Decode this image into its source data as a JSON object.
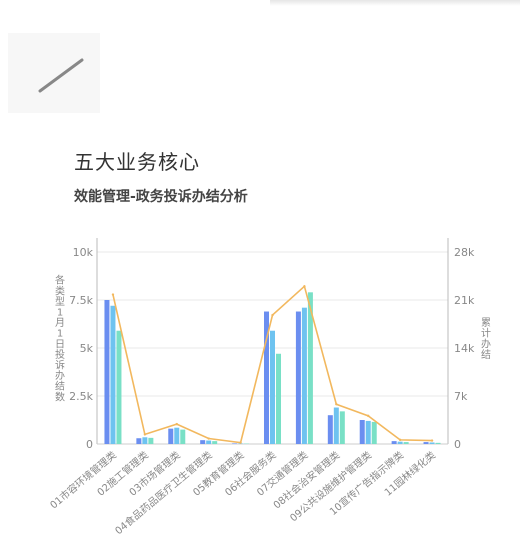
{
  "header": {
    "title": "五大业务核心",
    "subtitle": "效能管理-政务投诉办结分析"
  },
  "colors": {
    "series_blue": "#6b8ef0",
    "series_blue2": "#6ec3f0",
    "series_teal": "#79e0c6",
    "line": "#f2b85e",
    "axis_text": "#888888",
    "grid": "#e8e8e8"
  },
  "chart_data": {
    "type": "bar",
    "categories": [
      "01市容环境管理类",
      "02施工管理类",
      "03市场管理类",
      "04食品药品医疗卫生管理类",
      "05教育管理类",
      "06社会服务类",
      "07交通管理类",
      "08社会治安管理类",
      "09公共设施维护管理类",
      "10宣传广告指示牌类",
      "11园林绿化类"
    ],
    "series": [
      {
        "values": [
          7500,
          300,
          800,
          200,
          30,
          6900,
          6900,
          1500,
          1250,
          150,
          100
        ]
      },
      {
        "values": [
          7200,
          350,
          850,
          180,
          25,
          5900,
          7100,
          1900,
          1200,
          120,
          80
        ]
      },
      {
        "values": [
          5900,
          320,
          750,
          150,
          20,
          4700,
          7900,
          1700,
          1150,
          100,
          60
        ]
      }
    ],
    "line": {
      "axis": "right",
      "values": [
        21800,
        1400,
        2900,
        800,
        200,
        18800,
        23000,
        5800,
        4100,
        600,
        500
      ]
    },
    "ylabel": "各类型1月1日投诉办结数",
    "y2label": "累计办结",
    "ylim": [
      0,
      10000
    ],
    "y2lim": [
      0,
      28000
    ],
    "yticks": [
      "0",
      "2.5k",
      "5k",
      "7.5k",
      "10k"
    ],
    "y2ticks": [
      "0",
      "7k",
      "14k",
      "21k",
      "28k"
    ],
    "grid": true
  }
}
